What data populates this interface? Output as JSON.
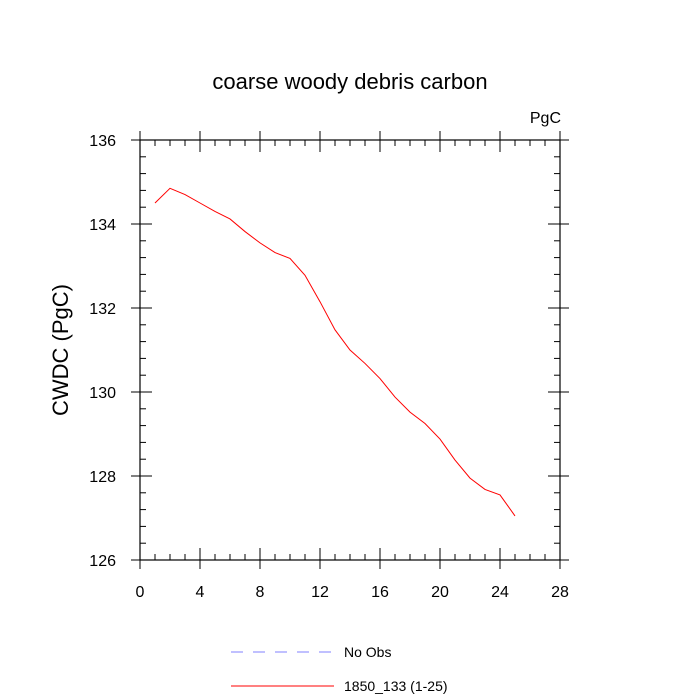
{
  "chart_data": {
    "type": "line",
    "title": "coarse woody debris carbon",
    "units": "PgC",
    "ylabel": "CWDC  (PgC)",
    "xlabel": "",
    "xlim": [
      0,
      28
    ],
    "ylim": [
      126,
      136
    ],
    "xticks": [
      0,
      4,
      8,
      12,
      16,
      20,
      24,
      28
    ],
    "yticks": [
      126,
      128,
      130,
      132,
      134,
      136
    ],
    "grid": false,
    "legend": {
      "placement": "bottom",
      "entries": [
        {
          "label": "No Obs",
          "color": "#8080ff",
          "style": "dashed"
        },
        {
          "label": "1850_133 (1-25)",
          "color": "#ff0000",
          "style": "solid"
        }
      ]
    },
    "series": [
      {
        "name": "1850_133 (1-25)",
        "color": "#ff0000",
        "x": [
          1,
          2,
          3,
          4,
          5,
          6,
          7,
          8,
          9,
          10,
          11,
          12,
          13,
          14,
          15,
          16,
          17,
          18,
          19,
          20,
          21,
          22,
          23,
          24,
          25
        ],
        "values": [
          134.5,
          134.85,
          134.7,
          134.5,
          134.3,
          134.12,
          133.82,
          133.55,
          133.32,
          133.18,
          132.78,
          132.15,
          131.48,
          131.0,
          130.68,
          130.32,
          129.88,
          129.52,
          129.25,
          128.88,
          128.38,
          127.95,
          127.68,
          127.55,
          127.05
        ]
      }
    ]
  }
}
